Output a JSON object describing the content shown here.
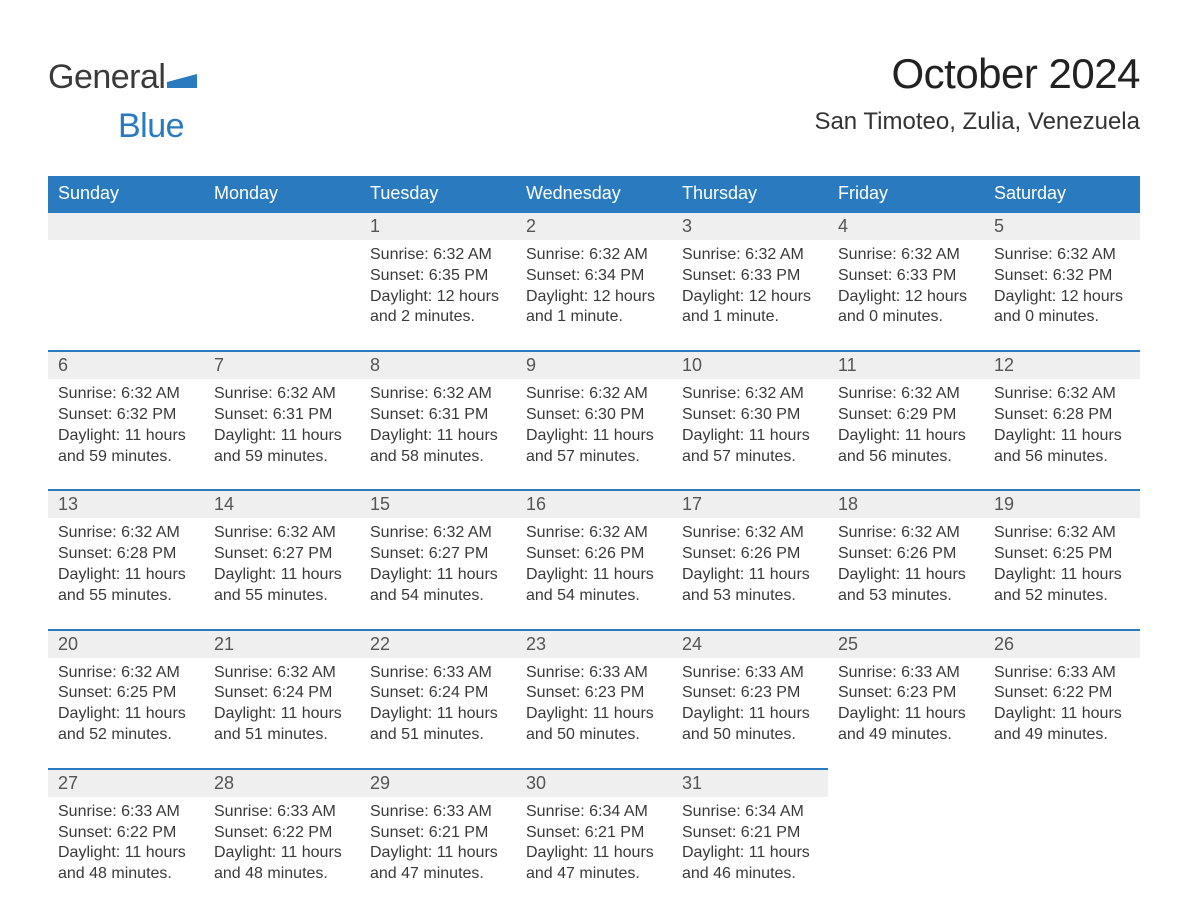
{
  "logo": {
    "text1": "General",
    "text2": "Blue",
    "flag_color": "#2a7ac0",
    "text1_color": "#3a3a3a"
  },
  "title": "October 2024",
  "location": "San Timoteo, Zulia, Venezuela",
  "header_bg": "#2a7ac0",
  "header_fg": "#ffffff",
  "daynum_bg": "#efefef",
  "row_border": "#2a7ac0",
  "body_bg": "#ffffff",
  "text_color": "#3a3a3a",
  "weekdays": [
    "Sunday",
    "Monday",
    "Tuesday",
    "Wednesday",
    "Thursday",
    "Friday",
    "Saturday"
  ],
  "labels": {
    "sunrise": "Sunrise:",
    "sunset": "Sunset:",
    "daylight": "Daylight:"
  },
  "weeks": [
    [
      null,
      null,
      {
        "n": "1",
        "sr": "6:32 AM",
        "ss": "6:35 PM",
        "dl": "12 hours and 2 minutes."
      },
      {
        "n": "2",
        "sr": "6:32 AM",
        "ss": "6:34 PM",
        "dl": "12 hours and 1 minute."
      },
      {
        "n": "3",
        "sr": "6:32 AM",
        "ss": "6:33 PM",
        "dl": "12 hours and 1 minute."
      },
      {
        "n": "4",
        "sr": "6:32 AM",
        "ss": "6:33 PM",
        "dl": "12 hours and 0 minutes."
      },
      {
        "n": "5",
        "sr": "6:32 AM",
        "ss": "6:32 PM",
        "dl": "12 hours and 0 minutes."
      }
    ],
    [
      {
        "n": "6",
        "sr": "6:32 AM",
        "ss": "6:32 PM",
        "dl": "11 hours and 59 minutes."
      },
      {
        "n": "7",
        "sr": "6:32 AM",
        "ss": "6:31 PM",
        "dl": "11 hours and 59 minutes."
      },
      {
        "n": "8",
        "sr": "6:32 AM",
        "ss": "6:31 PM",
        "dl": "11 hours and 58 minutes."
      },
      {
        "n": "9",
        "sr": "6:32 AM",
        "ss": "6:30 PM",
        "dl": "11 hours and 57 minutes."
      },
      {
        "n": "10",
        "sr": "6:32 AM",
        "ss": "6:30 PM",
        "dl": "11 hours and 57 minutes."
      },
      {
        "n": "11",
        "sr": "6:32 AM",
        "ss": "6:29 PM",
        "dl": "11 hours and 56 minutes."
      },
      {
        "n": "12",
        "sr": "6:32 AM",
        "ss": "6:28 PM",
        "dl": "11 hours and 56 minutes."
      }
    ],
    [
      {
        "n": "13",
        "sr": "6:32 AM",
        "ss": "6:28 PM",
        "dl": "11 hours and 55 minutes."
      },
      {
        "n": "14",
        "sr": "6:32 AM",
        "ss": "6:27 PM",
        "dl": "11 hours and 55 minutes."
      },
      {
        "n": "15",
        "sr": "6:32 AM",
        "ss": "6:27 PM",
        "dl": "11 hours and 54 minutes."
      },
      {
        "n": "16",
        "sr": "6:32 AM",
        "ss": "6:26 PM",
        "dl": "11 hours and 54 minutes."
      },
      {
        "n": "17",
        "sr": "6:32 AM",
        "ss": "6:26 PM",
        "dl": "11 hours and 53 minutes."
      },
      {
        "n": "18",
        "sr": "6:32 AM",
        "ss": "6:26 PM",
        "dl": "11 hours and 53 minutes."
      },
      {
        "n": "19",
        "sr": "6:32 AM",
        "ss": "6:25 PM",
        "dl": "11 hours and 52 minutes."
      }
    ],
    [
      {
        "n": "20",
        "sr": "6:32 AM",
        "ss": "6:25 PM",
        "dl": "11 hours and 52 minutes."
      },
      {
        "n": "21",
        "sr": "6:32 AM",
        "ss": "6:24 PM",
        "dl": "11 hours and 51 minutes."
      },
      {
        "n": "22",
        "sr": "6:33 AM",
        "ss": "6:24 PM",
        "dl": "11 hours and 51 minutes."
      },
      {
        "n": "23",
        "sr": "6:33 AM",
        "ss": "6:23 PM",
        "dl": "11 hours and 50 minutes."
      },
      {
        "n": "24",
        "sr": "6:33 AM",
        "ss": "6:23 PM",
        "dl": "11 hours and 50 minutes."
      },
      {
        "n": "25",
        "sr": "6:33 AM",
        "ss": "6:23 PM",
        "dl": "11 hours and 49 minutes."
      },
      {
        "n": "26",
        "sr": "6:33 AM",
        "ss": "6:22 PM",
        "dl": "11 hours and 49 minutes."
      }
    ],
    [
      {
        "n": "27",
        "sr": "6:33 AM",
        "ss": "6:22 PM",
        "dl": "11 hours and 48 minutes."
      },
      {
        "n": "28",
        "sr": "6:33 AM",
        "ss": "6:22 PM",
        "dl": "11 hours and 48 minutes."
      },
      {
        "n": "29",
        "sr": "6:33 AM",
        "ss": "6:21 PM",
        "dl": "11 hours and 47 minutes."
      },
      {
        "n": "30",
        "sr": "6:34 AM",
        "ss": "6:21 PM",
        "dl": "11 hours and 47 minutes."
      },
      {
        "n": "31",
        "sr": "6:34 AM",
        "ss": "6:21 PM",
        "dl": "11 hours and 46 minutes."
      },
      null,
      null
    ]
  ]
}
